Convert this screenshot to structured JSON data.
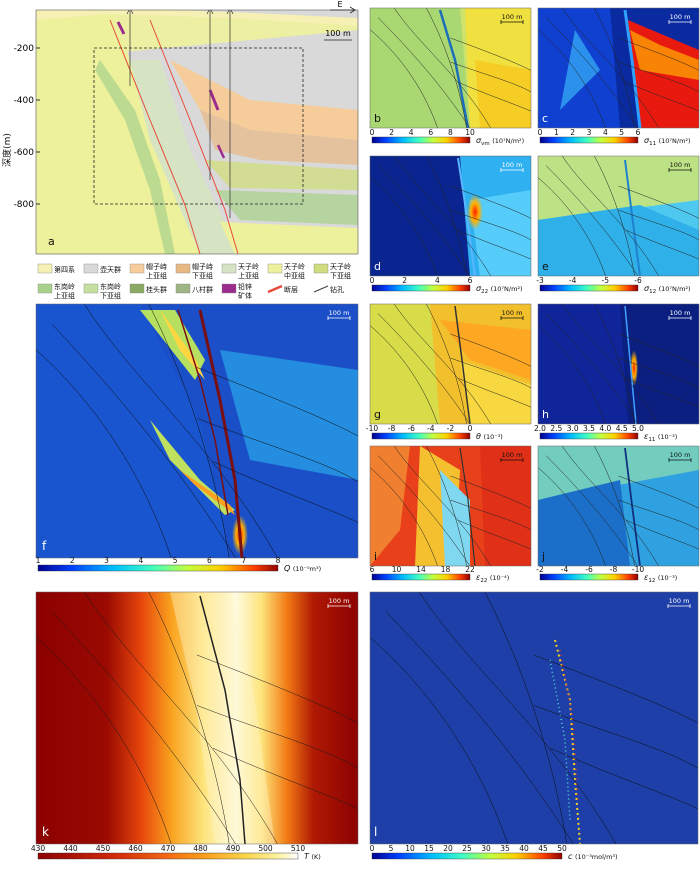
{
  "section_a": {
    "letter": "a",
    "depth_label": "深度(m)",
    "depth_ticks": [
      "-200",
      "-400",
      "-600",
      "-800"
    ],
    "east_label": "E",
    "scale_label": "100 m"
  },
  "legend": {
    "row1": [
      {
        "label": "第四系",
        "color": "#f6f0b4"
      },
      {
        "label": "壶天群",
        "color": "#d9d9d9"
      },
      {
        "label": "帽子峙上亚组",
        "color": "#f6cc9a"
      },
      {
        "label": "帽子峙下亚组",
        "color": "#e8b883"
      },
      {
        "label": "天子岭上亚组",
        "color": "#d6e4c4"
      },
      {
        "label": "天子岭中亚组",
        "color": "#eef19b"
      },
      {
        "label": "天子岭下亚组",
        "color": "#cfdc80"
      }
    ],
    "row2": [
      {
        "label": "东岗岭上亚组",
        "color": "#a8d28c"
      },
      {
        "label": "东岗岭下亚组",
        "color": "#c5e09e"
      },
      {
        "label": "桂头群",
        "color": "#8aaa63"
      },
      {
        "label": "八村群",
        "color": "#9fb585"
      },
      {
        "label": "铅锌矿体",
        "color": "#9b2c8d"
      },
      {
        "label": "断层",
        "color": "#e74a3a"
      },
      {
        "label": "钻孔",
        "color": "#444444"
      }
    ]
  },
  "scale_bar": "100 m",
  "panels": {
    "b": {
      "letter": "b",
      "ticks": [
        "0",
        "2",
        "4",
        "6",
        "8",
        "10"
      ],
      "symbol": "σ",
      "sub": "vm",
      "unit": "(10⁷N/m²)"
    },
    "c": {
      "letter": "c",
      "ticks": [
        "0",
        "1",
        "2",
        "3",
        "4",
        "5",
        "6"
      ],
      "symbol": "σ",
      "sub": "11",
      "unit": "(10⁷N/m²)"
    },
    "d": {
      "letter": "d",
      "ticks": [
        "0",
        "2",
        "4",
        "6"
      ],
      "symbol": "σ",
      "sub": "22",
      "unit": "(10⁷N/m²)"
    },
    "e": {
      "letter": "e",
      "ticks": [
        "-3",
        "-4",
        "-5",
        "-6"
      ],
      "symbol": "σ",
      "sub": "12",
      "unit": "(10⁷N/m²)"
    },
    "f": {
      "letter": "f",
      "ticks": [
        "1",
        "2",
        "3",
        "4",
        "5",
        "6",
        "7",
        "8"
      ],
      "symbol": "Q",
      "sub": "",
      "unit": "(10⁻⁵m³)"
    },
    "g": {
      "letter": "g",
      "ticks": [
        "-10",
        "-8",
        "-6",
        "-4",
        "-2",
        "0"
      ],
      "symbol": "θ",
      "sub": "",
      "unit": "(10⁻³)"
    },
    "h": {
      "letter": "h",
      "ticks": [
        "2.0",
        "2.5",
        "3.0",
        "3.5",
        "4.0",
        "4.5",
        "5.0"
      ],
      "symbol": "ε",
      "sub": "11",
      "unit": "(10⁻³)"
    },
    "i": {
      "letter": "i",
      "ticks": [
        "6",
        "10",
        "14",
        "18",
        "22"
      ],
      "symbol": "ε",
      "sub": "22",
      "unit": "(10⁻⁴)"
    },
    "j": {
      "letter": "j",
      "ticks": [
        "-2",
        "-4",
        "-6",
        "-8",
        "-10"
      ],
      "symbol": "ε",
      "sub": "12",
      "unit": "(10⁻³)"
    },
    "k": {
      "letter": "k",
      "ticks": [
        "430",
        "440",
        "450",
        "460",
        "470",
        "480",
        "490",
        "500",
        "510"
      ],
      "symbol": "T",
      "sub": "",
      "unit": "(K)"
    },
    "l": {
      "letter": "l",
      "ticks": [
        "0",
        "5",
        "10",
        "15",
        "20",
        "25",
        "30",
        "35",
        "40",
        "45",
        "50"
      ],
      "symbol": "c",
      "sub": "",
      "unit": "(10⁻³mol/m³)"
    }
  },
  "colors": {
    "jet": [
      "#00008f",
      "#0040ff",
      "#00c0ff",
      "#40ffbf",
      "#c0ff40",
      "#ffd000",
      "#ff4000",
      "#8f0000"
    ],
    "heat": [
      "#8b0000",
      "#d42a0a",
      "#f56a14",
      "#f9a21e",
      "#fbd54b",
      "#fdf2a0",
      "#ffffff"
    ]
  }
}
